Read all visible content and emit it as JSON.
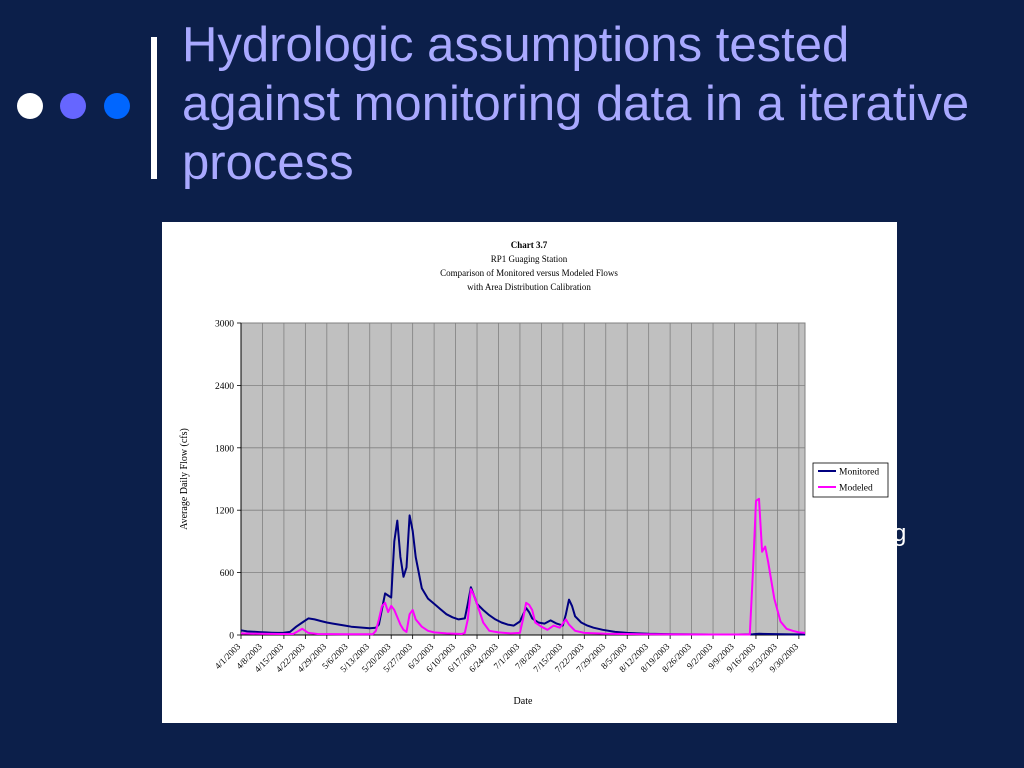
{
  "slide": {
    "title": "Hydrologic assumptions tested against monitoring data in a iterative process",
    "partial_text": "g"
  },
  "colors": {
    "background": "#0c1f4a",
    "title": "#a9a9ff",
    "dot1": "#ffffff",
    "dot2": "#6666ff",
    "dot3": "#0066ff"
  },
  "chart_data": {
    "type": "line",
    "title_lines": [
      "Chart 3.7",
      "RP1 Guaging Station",
      "Comparison of Monitored versus Modeled Flows",
      "with Area Distribution Calibration"
    ],
    "xlabel": "Date",
    "ylabel": "Average Daily Flow (cfs)",
    "ylim": [
      0,
      3000
    ],
    "yticks": [
      "0",
      "600",
      "1200",
      "1800",
      "2400",
      "3000"
    ],
    "xticks": [
      "4/1/2003",
      "4/8/2003",
      "4/15/2003",
      "4/22/2003",
      "4/29/2003",
      "5/6/2003",
      "5/13/2003",
      "5/20/2003",
      "5/27/2003",
      "6/3/2003",
      "6/10/2003",
      "6/17/2003",
      "6/24/2003",
      "7/1/2003",
      "7/8/2003",
      "7/15/2003",
      "7/22/2003",
      "7/29/2003",
      "8/5/2003",
      "8/12/2003",
      "8/19/2003",
      "8/26/2003",
      "9/2/2003",
      "9/9/2003",
      "9/16/2003",
      "9/23/2003",
      "9/30/2003"
    ],
    "x_start": "4/1/2003",
    "x_end": "10/2/2003",
    "grid": true,
    "legend": "right",
    "series": [
      {
        "name": "Monitored",
        "color": "#000080",
        "points": [
          [
            "4/1/2003",
            45
          ],
          [
            "4/3/2003",
            35
          ],
          [
            "4/5/2003",
            32
          ],
          [
            "4/7/2003",
            28
          ],
          [
            "4/9/2003",
            25
          ],
          [
            "4/11/2003",
            22
          ],
          [
            "4/13/2003",
            20
          ],
          [
            "4/15/2003",
            22
          ],
          [
            "4/17/2003",
            30
          ],
          [
            "4/19/2003",
            80
          ],
          [
            "4/21/2003",
            120
          ],
          [
            "4/23/2003",
            160
          ],
          [
            "4/25/2003",
            150
          ],
          [
            "4/27/2003",
            135
          ],
          [
            "4/29/2003",
            120
          ],
          [
            "5/1/2003",
            110
          ],
          [
            "5/3/2003",
            100
          ],
          [
            "5/5/2003",
            90
          ],
          [
            "5/7/2003",
            80
          ],
          [
            "5/9/2003",
            75
          ],
          [
            "5/11/2003",
            70
          ],
          [
            "5/13/2003",
            65
          ],
          [
            "5/15/2003",
            70
          ],
          [
            "5/16/2003",
            100
          ],
          [
            "5/17/2003",
            250
          ],
          [
            "5/18/2003",
            400
          ],
          [
            "5/19/2003",
            380
          ],
          [
            "5/20/2003",
            360
          ],
          [
            "5/21/2003",
            900
          ],
          [
            "5/22/2003",
            1100
          ],
          [
            "5/23/2003",
            750
          ],
          [
            "5/24/2003",
            560
          ],
          [
            "5/25/2003",
            650
          ],
          [
            "5/26/2003",
            1150
          ],
          [
            "5/27/2003",
            1000
          ],
          [
            "5/28/2003",
            750
          ],
          [
            "5/30/2003",
            450
          ],
          [
            "6/1/2003",
            350
          ],
          [
            "6/3/2003",
            300
          ],
          [
            "6/5/2003",
            250
          ],
          [
            "6/7/2003",
            200
          ],
          [
            "6/9/2003",
            170
          ],
          [
            "6/11/2003",
            150
          ],
          [
            "6/13/2003",
            160
          ],
          [
            "6/14/2003",
            300
          ],
          [
            "6/15/2003",
            460
          ],
          [
            "6/16/2003",
            380
          ],
          [
            "6/17/2003",
            300
          ],
          [
            "6/19/2003",
            240
          ],
          [
            "6/21/2003",
            190
          ],
          [
            "6/23/2003",
            150
          ],
          [
            "6/25/2003",
            120
          ],
          [
            "6/27/2003",
            100
          ],
          [
            "6/29/2003",
            90
          ],
          [
            "7/1/2003",
            130
          ],
          [
            "7/3/2003",
            260
          ],
          [
            "7/4/2003",
            220
          ],
          [
            "7/5/2003",
            160
          ],
          [
            "7/7/2003",
            120
          ],
          [
            "7/9/2003",
            110
          ],
          [
            "7/11/2003",
            140
          ],
          [
            "7/13/2003",
            110
          ],
          [
            "7/15/2003",
            90
          ],
          [
            "7/16/2003",
            200
          ],
          [
            "7/17/2003",
            340
          ],
          [
            "7/18/2003",
            280
          ],
          [
            "7/19/2003",
            180
          ],
          [
            "7/21/2003",
            120
          ],
          [
            "7/23/2003",
            90
          ],
          [
            "7/25/2003",
            70
          ],
          [
            "7/28/2003",
            50
          ],
          [
            "8/1/2003",
            30
          ],
          [
            "8/5/2003",
            20
          ],
          [
            "8/12/2003",
            12
          ],
          [
            "8/20/2003",
            8
          ],
          [
            "9/1/2003",
            5
          ],
          [
            "9/10/2003",
            5
          ],
          [
            "9/15/2003",
            8
          ],
          [
            "9/17/2003",
            12
          ],
          [
            "9/20/2003",
            10
          ],
          [
            "9/25/2003",
            8
          ],
          [
            "10/2/2003",
            5
          ]
        ]
      },
      {
        "name": "Modeled",
        "color": "#ff00ff",
        "points": [
          [
            "4/1/2003",
            15
          ],
          [
            "4/7/2003",
            12
          ],
          [
            "4/14/2003",
            10
          ],
          [
            "4/18/2003",
            10
          ],
          [
            "4/21/2003",
            60
          ],
          [
            "4/23/2003",
            20
          ],
          [
            "4/26/2003",
            10
          ],
          [
            "5/5/2003",
            8
          ],
          [
            "5/14/2003",
            8
          ],
          [
            "5/15/2003",
            40
          ],
          [
            "5/16/2003",
            150
          ],
          [
            "5/17/2003",
            280
          ],
          [
            "5/18/2003",
            310
          ],
          [
            "5/19/2003",
            220
          ],
          [
            "5/20/2003",
            280
          ],
          [
            "5/21/2003",
            240
          ],
          [
            "5/23/2003",
            100
          ],
          [
            "5/24/2003",
            50
          ],
          [
            "5/25/2003",
            30
          ],
          [
            "5/26/2003",
            200
          ],
          [
            "5/27/2003",
            240
          ],
          [
            "5/28/2003",
            150
          ],
          [
            "5/30/2003",
            80
          ],
          [
            "6/1/2003",
            40
          ],
          [
            "6/3/2003",
            25
          ],
          [
            "6/7/2003",
            15
          ],
          [
            "6/12/2003",
            10
          ],
          [
            "6/13/2003",
            20
          ],
          [
            "6/14/2003",
            150
          ],
          [
            "6/15/2003",
            440
          ],
          [
            "6/16/2003",
            380
          ],
          [
            "6/17/2003",
            300
          ],
          [
            "6/19/2003",
            120
          ],
          [
            "6/21/2003",
            40
          ],
          [
            "6/24/2003",
            25
          ],
          [
            "6/28/2003",
            15
          ],
          [
            "7/1/2003",
            20
          ],
          [
            "7/2/2003",
            150
          ],
          [
            "7/3/2003",
            310
          ],
          [
            "7/4/2003",
            290
          ],
          [
            "7/5/2003",
            240
          ],
          [
            "7/6/2003",
            120
          ],
          [
            "7/8/2003",
            80
          ],
          [
            "7/10/2003",
            50
          ],
          [
            "7/12/2003",
            90
          ],
          [
            "7/14/2003",
            70
          ],
          [
            "7/16/2003",
            150
          ],
          [
            "7/17/2003",
            100
          ],
          [
            "7/19/2003",
            40
          ],
          [
            "7/22/2003",
            20
          ],
          [
            "7/29/2003",
            12
          ],
          [
            "8/10/2003",
            8
          ],
          [
            "9/1/2003",
            5
          ],
          [
            "9/14/2003",
            5
          ],
          [
            "9/15/2003",
            600
          ],
          [
            "9/16/2003",
            1290
          ],
          [
            "9/17/2003",
            1310
          ],
          [
            "9/18/2003",
            800
          ],
          [
            "9/19/2003",
            850
          ],
          [
            "9/20/2003",
            700
          ],
          [
            "9/22/2003",
            350
          ],
          [
            "9/24/2003",
            130
          ],
          [
            "9/26/2003",
            60
          ],
          [
            "9/28/2003",
            40
          ],
          [
            "9/30/2003",
            25
          ],
          [
            "10/2/2003",
            20
          ]
        ]
      }
    ]
  }
}
